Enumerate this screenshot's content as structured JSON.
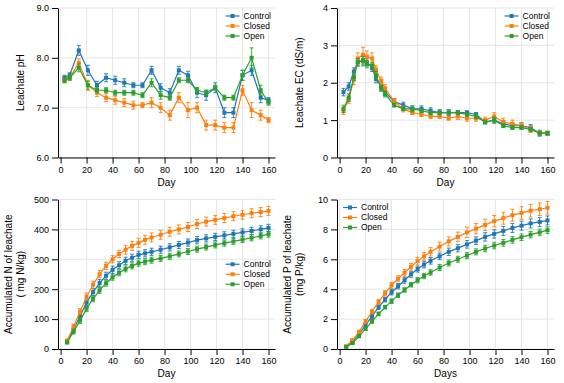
{
  "chart_data": [
    {
      "type": "line",
      "marker": "square",
      "grid": true,
      "legend": "upper right",
      "x_label": "Day",
      "y_label": "Leachate pH",
      "xlim": [
        -2,
        165
      ],
      "xticks": [
        0,
        20,
        40,
        60,
        80,
        100,
        120,
        140,
        160
      ],
      "ylim": [
        6.0,
        9.0
      ],
      "yticks": [
        {
          "value": 6,
          "label": "6.0"
        },
        {
          "value": 7,
          "label": "7.0"
        },
        {
          "value": 8,
          "label": "8.0"
        },
        {
          "value": 9,
          "label": "9.0"
        }
      ],
      "x": [
        3,
        7,
        14,
        21,
        28,
        35,
        42,
        49,
        56,
        63,
        70,
        77,
        84,
        91,
        98,
        105,
        112,
        119,
        126,
        133,
        140,
        147,
        154,
        160
      ],
      "series": [
        {
          "name": "Control",
          "values": [
            7.6,
            7.65,
            8.15,
            7.75,
            7.45,
            7.6,
            7.55,
            7.5,
            7.45,
            7.45,
            7.75,
            7.4,
            7.3,
            7.75,
            7.65,
            7.3,
            7.25,
            7.4,
            6.9,
            6.9,
            7.65,
            7.75,
            7.2,
            7.15
          ],
          "error": [
            0.05,
            0.05,
            0.1,
            0.1,
            0.08,
            0.08,
            0.08,
            0.08,
            0.05,
            0.05,
            0.08,
            0.08,
            0.08,
            0.08,
            0.08,
            0.1,
            0.1,
            0.1,
            0.1,
            0.1,
            0.1,
            0.1,
            0.1,
            0.05
          ]
        },
        {
          "name": "Closed",
          "values": [
            7.55,
            7.6,
            7.9,
            7.45,
            7.3,
            7.2,
            7.15,
            7.1,
            7.05,
            7.05,
            7.1,
            7.0,
            6.85,
            7.2,
            6.95,
            7.0,
            6.65,
            6.65,
            6.6,
            6.6,
            7.35,
            6.95,
            6.85,
            6.75
          ],
          "error": [
            0.05,
            0.05,
            0.08,
            0.1,
            0.08,
            0.08,
            0.08,
            0.08,
            0.08,
            0.05,
            0.1,
            0.1,
            0.1,
            0.1,
            0.15,
            0.1,
            0.1,
            0.1,
            0.1,
            0.1,
            0.1,
            0.15,
            0.1,
            0.05
          ]
        },
        {
          "name": "Open",
          "values": [
            7.55,
            7.6,
            7.8,
            7.45,
            7.35,
            7.35,
            7.3,
            7.3,
            7.3,
            7.25,
            7.5,
            7.25,
            7.2,
            7.55,
            7.55,
            7.35,
            7.3,
            7.4,
            7.2,
            7.2,
            7.65,
            8.0,
            7.35,
            7.1
          ],
          "error": [
            0.05,
            0.05,
            0.08,
            0.08,
            0.05,
            0.05,
            0.05,
            0.05,
            0.05,
            0.05,
            0.08,
            0.08,
            0.05,
            0.05,
            0.05,
            0.05,
            0.05,
            0.05,
            0.05,
            0.05,
            0.1,
            0.2,
            0.1,
            0.05
          ]
        }
      ]
    },
    {
      "type": "line",
      "marker": "square",
      "grid": true,
      "legend": "upper right",
      "x_label": "Day",
      "y_label": "Leachate EC (dS/m)",
      "xlim": [
        -2,
        165
      ],
      "xticks": [
        0,
        20,
        40,
        60,
        80,
        100,
        120,
        140,
        160
      ],
      "ylim": [
        0,
        4
      ],
      "yticks": [
        0,
        1,
        2,
        3,
        4
      ],
      "x": [
        3,
        7,
        11,
        14,
        18,
        21,
        25,
        28,
        32,
        35,
        42,
        49,
        56,
        63,
        70,
        77,
        84,
        91,
        98,
        105,
        112,
        119,
        126,
        133,
        140,
        147,
        154,
        160
      ],
      "series": [
        {
          "name": "Control",
          "values": [
            1.75,
            1.9,
            2.3,
            2.55,
            2.6,
            2.55,
            2.4,
            2.1,
            1.9,
            1.75,
            1.5,
            1.4,
            1.3,
            1.3,
            1.25,
            1.2,
            1.2,
            1.2,
            1.2,
            1.15,
            0.95,
            1.0,
            0.9,
            0.85,
            0.85,
            0.8,
            0.65,
            0.65
          ],
          "error": [
            0.1,
            0.1,
            0.1,
            0.1,
            0.15,
            0.1,
            0.1,
            0.1,
            0.1,
            0.1,
            0.08,
            0.08,
            0.08,
            0.08,
            0.08,
            0.08,
            0.08,
            0.05,
            0.05,
            0.05,
            0.05,
            0.08,
            0.08,
            0.08,
            0.08,
            0.08,
            0.08,
            0.05
          ]
        },
        {
          "name": "Closed",
          "values": [
            1.25,
            1.55,
            2.1,
            2.65,
            2.75,
            2.7,
            2.65,
            2.35,
            2.05,
            1.85,
            1.5,
            1.3,
            1.2,
            1.15,
            1.1,
            1.1,
            1.05,
            1.1,
            1.05,
            1.05,
            1.0,
            1.1,
            0.95,
            0.9,
            0.85,
            0.75,
            0.65,
            0.65
          ],
          "error": [
            0.1,
            0.1,
            0.15,
            0.15,
            0.2,
            0.15,
            0.15,
            0.1,
            0.1,
            0.1,
            0.08,
            0.08,
            0.05,
            0.05,
            0.05,
            0.05,
            0.05,
            0.08,
            0.08,
            0.08,
            0.08,
            0.1,
            0.1,
            0.1,
            0.08,
            0.08,
            0.05,
            0.05
          ]
        },
        {
          "name": "Open",
          "values": [
            1.3,
            1.6,
            2.15,
            2.55,
            2.6,
            2.5,
            2.45,
            2.2,
            1.85,
            1.7,
            1.4,
            1.3,
            1.3,
            1.25,
            1.2,
            1.2,
            1.2,
            1.2,
            1.15,
            1.1,
            0.95,
            1.0,
            0.85,
            0.8,
            0.8,
            0.75,
            0.65,
            0.65
          ],
          "error": [
            0.1,
            0.1,
            0.1,
            0.1,
            0.1,
            0.1,
            0.1,
            0.1,
            0.08,
            0.08,
            0.05,
            0.05,
            0.08,
            0.05,
            0.05,
            0.05,
            0.05,
            0.05,
            0.05,
            0.05,
            0.05,
            0.08,
            0.05,
            0.05,
            0.05,
            0.05,
            0.05,
            0.05
          ]
        }
      ]
    },
    {
      "type": "line",
      "marker": "square",
      "grid": true,
      "legend": "center right",
      "x_label": "Day",
      "y_label": "Accumulated N of leachate\n( mg N/kg)",
      "xlim": [
        -2,
        165
      ],
      "xticks": [
        0,
        20,
        40,
        60,
        80,
        100,
        120,
        140,
        160
      ],
      "ylim": [
        0,
        500
      ],
      "yticks": [
        0,
        100,
        200,
        300,
        400,
        500
      ],
      "x": [
        5,
        10,
        15,
        20,
        25,
        30,
        35,
        40,
        45,
        50,
        55,
        60,
        65,
        70,
        77,
        84,
        91,
        98,
        105,
        112,
        119,
        126,
        133,
        140,
        147,
        154,
        160
      ],
      "series": [
        {
          "name": "Control",
          "values": [
            25,
            65,
            110,
            155,
            190,
            220,
            245,
            265,
            280,
            295,
            305,
            315,
            320,
            325,
            332,
            340,
            348,
            356,
            364,
            370,
            375,
            380,
            385,
            390,
            395,
            400,
            405
          ],
          "error": [
            5,
            8,
            10,
            12,
            12,
            12,
            12,
            12,
            12,
            12,
            12,
            12,
            12,
            12,
            12,
            12,
            12,
            12,
            12,
            12,
            12,
            12,
            12,
            12,
            12,
            12,
            12
          ]
        },
        {
          "name": "Closed",
          "values": [
            28,
            75,
            125,
            175,
            215,
            250,
            278,
            300,
            318,
            332,
            345,
            355,
            365,
            373,
            382,
            392,
            400,
            408,
            418,
            426,
            432,
            438,
            444,
            449,
            454,
            458,
            462
          ],
          "error": [
            5,
            8,
            10,
            12,
            12,
            12,
            12,
            12,
            12,
            15,
            15,
            15,
            15,
            15,
            15,
            15,
            15,
            15,
            15,
            15,
            15,
            15,
            15,
            15,
            15,
            15,
            15
          ]
        },
        {
          "name": "Open",
          "values": [
            22,
            58,
            95,
            135,
            168,
            196,
            220,
            240,
            255,
            268,
            278,
            287,
            292,
            297,
            303,
            310,
            318,
            326,
            334,
            341,
            348,
            354,
            360,
            366,
            372,
            378,
            384
          ],
          "error": [
            5,
            8,
            10,
            10,
            10,
            10,
            10,
            10,
            10,
            10,
            10,
            10,
            10,
            10,
            10,
            10,
            10,
            10,
            10,
            10,
            10,
            10,
            10,
            10,
            10,
            10,
            10
          ]
        }
      ]
    },
    {
      "type": "line",
      "marker": "square",
      "grid": true,
      "legend": "upper left",
      "x_label": "Days",
      "y_label": "Accumulated P of leachate\n(mg P/kg)",
      "xlim": [
        -2,
        165
      ],
      "xticks": [
        0,
        20,
        40,
        60,
        80,
        100,
        120,
        140,
        160
      ],
      "ylim": [
        0,
        10
      ],
      "yticks": [
        0,
        2,
        4,
        6,
        8,
        10
      ],
      "x": [
        5,
        10,
        15,
        20,
        25,
        30,
        35,
        40,
        45,
        50,
        55,
        60,
        65,
        70,
        77,
        84,
        91,
        98,
        105,
        112,
        119,
        126,
        133,
        140,
        147,
        154,
        160
      ],
      "series": [
        {
          "name": "Control",
          "values": [
            0.15,
            0.5,
            1.0,
            1.6,
            2.2,
            2.8,
            3.3,
            3.8,
            4.2,
            4.6,
            5.0,
            5.35,
            5.65,
            5.9,
            6.2,
            6.5,
            6.75,
            7.0,
            7.25,
            7.5,
            7.7,
            7.9,
            8.1,
            8.25,
            8.4,
            8.5,
            8.6
          ],
          "error": [
            0.05,
            0.08,
            0.1,
            0.12,
            0.15,
            0.15,
            0.15,
            0.18,
            0.18,
            0.2,
            0.2,
            0.2,
            0.22,
            0.22,
            0.22,
            0.25,
            0.25,
            0.25,
            0.25,
            0.28,
            0.28,
            0.3,
            0.3,
            0.3,
            0.3,
            0.3,
            0.3
          ]
        },
        {
          "name": "Closed",
          "values": [
            0.18,
            0.6,
            1.15,
            1.85,
            2.5,
            3.15,
            3.72,
            4.25,
            4.7,
            5.1,
            5.5,
            5.88,
            6.2,
            6.5,
            6.85,
            7.2,
            7.5,
            7.8,
            8.05,
            8.3,
            8.55,
            8.75,
            8.95,
            9.1,
            9.25,
            9.35,
            9.45
          ],
          "error": [
            0.05,
            0.08,
            0.1,
            0.12,
            0.15,
            0.15,
            0.18,
            0.2,
            0.2,
            0.22,
            0.22,
            0.25,
            0.25,
            0.28,
            0.3,
            0.3,
            0.32,
            0.35,
            0.35,
            0.38,
            0.38,
            0.4,
            0.4,
            0.42,
            0.42,
            0.42,
            0.42
          ]
        },
        {
          "name": "Open",
          "values": [
            0.12,
            0.4,
            0.85,
            1.35,
            1.85,
            2.35,
            2.8,
            3.2,
            3.6,
            3.95,
            4.3,
            4.6,
            4.88,
            5.12,
            5.45,
            5.75,
            6.0,
            6.25,
            6.5,
            6.72,
            6.92,
            7.1,
            7.3,
            7.48,
            7.65,
            7.8,
            7.95
          ],
          "error": [
            0.05,
            0.06,
            0.08,
            0.1,
            0.12,
            0.12,
            0.12,
            0.15,
            0.15,
            0.15,
            0.15,
            0.18,
            0.18,
            0.18,
            0.2,
            0.2,
            0.2,
            0.2,
            0.2,
            0.22,
            0.22,
            0.22,
            0.22,
            0.22,
            0.22,
            0.22,
            0.22
          ]
        }
      ]
    }
  ]
}
